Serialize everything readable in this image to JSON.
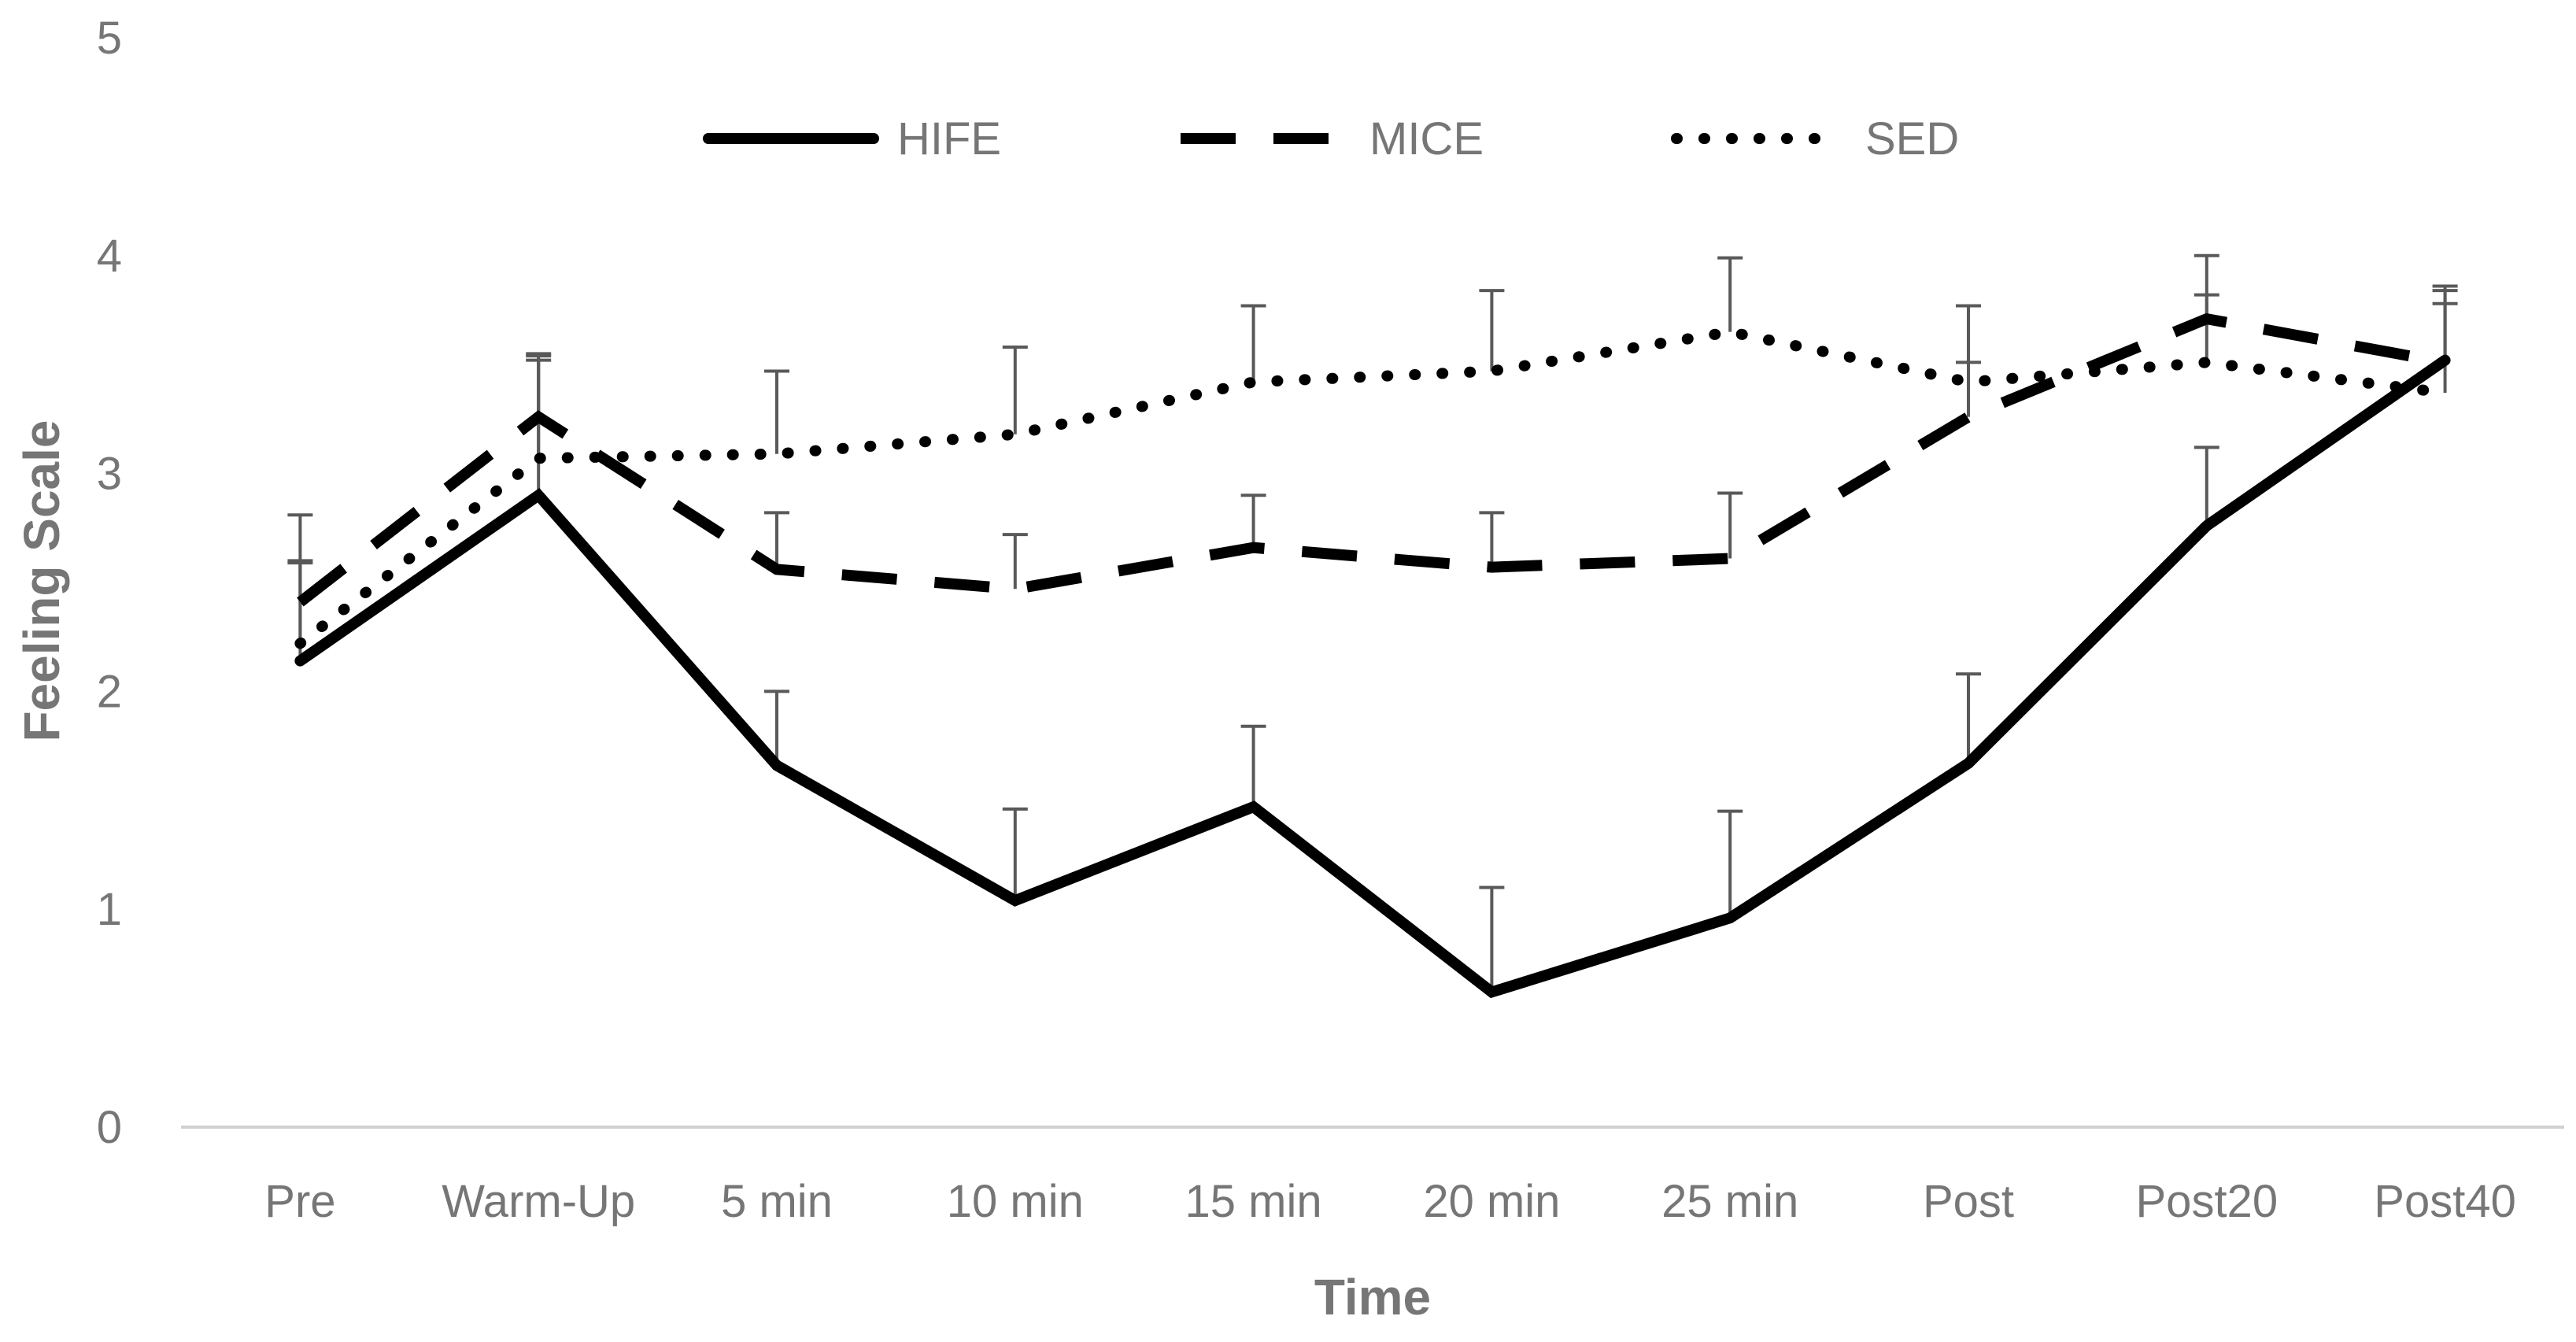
{
  "chart_data": {
    "type": "line",
    "title": "",
    "xlabel": "Time",
    "ylabel": "Feeling Scale",
    "ylim": [
      0,
      5
    ],
    "yticks": [
      0,
      1,
      2,
      3,
      4,
      5
    ],
    "grid": false,
    "legend_position": "top",
    "categories": [
      "Pre",
      "Warm-Up",
      "5 min",
      "10 min",
      "15 min",
      "20 min",
      "25 min",
      "Post",
      "Post20",
      "Post40"
    ],
    "series": [
      {
        "name": "HIFE",
        "line_style": "solid",
        "color": "#000000",
        "values": [
          2.14,
          2.9,
          1.66,
          1.04,
          1.47,
          0.62,
          0.96,
          1.67,
          2.76,
          3.52
        ],
        "error_upper": [
          0.45,
          0.62,
          0.34,
          0.42,
          0.37,
          0.48,
          0.49,
          0.41,
          0.36,
          0.32
        ]
      },
      {
        "name": "MICE",
        "line_style": "dashed",
        "color": "#000000",
        "values": [
          2.41,
          3.26,
          2.56,
          2.47,
          2.66,
          2.57,
          2.61,
          3.26,
          3.71,
          3.51
        ],
        "error_upper": [
          0.4,
          0.28,
          0.26,
          0.25,
          0.24,
          0.25,
          0.3,
          0.25,
          0.29,
          0.35
        ]
      },
      {
        "name": "SED",
        "line_style": "dotted",
        "color": "#000000",
        "values": [
          2.22,
          3.07,
          3.09,
          3.18,
          3.42,
          3.47,
          3.65,
          3.42,
          3.51,
          3.37
        ],
        "error_upper": [
          0.38,
          0.48,
          0.38,
          0.4,
          0.35,
          0.37,
          0.34,
          0.35,
          0.31,
          0.41
        ]
      }
    ]
  }
}
